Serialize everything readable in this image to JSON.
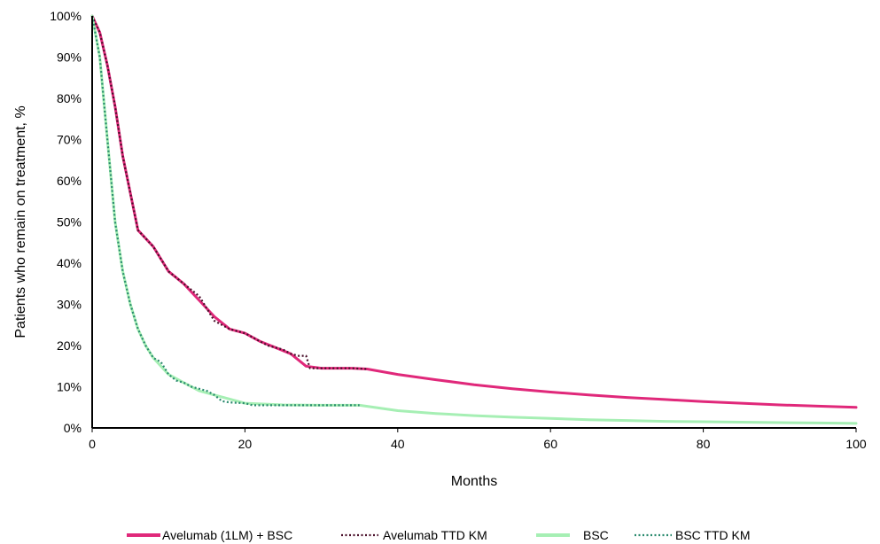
{
  "chart_data": {
    "type": "line",
    "title": "",
    "xlabel": "Months",
    "ylabel": "Patients who remain on treatment, %",
    "xlim": [
      0,
      100
    ],
    "ylim": [
      0,
      100
    ],
    "x_ticks": [
      0,
      20,
      40,
      60,
      80,
      100
    ],
    "x_tick_labels": [
      "0",
      "20",
      "40",
      "60",
      "80",
      "100"
    ],
    "y_ticks": [
      0,
      10,
      20,
      30,
      40,
      50,
      60,
      70,
      80,
      90,
      100
    ],
    "y_tick_labels": [
      "0%",
      "10%",
      "20%",
      "30%",
      "40%",
      "50%",
      "60%",
      "70%",
      "80%",
      "90%",
      "100%"
    ],
    "grid": false,
    "legend_position": "bottom",
    "series": [
      {
        "name": "Avelumab (1LM) + BSC",
        "color": "#e0287a",
        "style": "solid",
        "x": [
          0,
          1,
          2,
          3,
          4,
          5,
          6,
          8,
          10,
          12,
          14,
          16,
          18,
          20,
          22,
          24,
          26,
          28,
          30,
          32,
          34,
          36,
          40,
          45,
          50,
          55,
          60,
          65,
          70,
          75,
          80,
          85,
          90,
          95,
          100
        ],
        "y": [
          100,
          96,
          88,
          78,
          66,
          57,
          48,
          44,
          38,
          35,
          31,
          27,
          24,
          23,
          21,
          19.5,
          18,
          15,
          14.5,
          14.5,
          14.5,
          14.3,
          13,
          11.7,
          10.5,
          9.5,
          8.7,
          8,
          7.4,
          6.9,
          6.4,
          6,
          5.6,
          5.3,
          5
        ]
      },
      {
        "name": "Avelumab TTD KM",
        "color": "#4a0f2a",
        "style": "dotted",
        "x": [
          0,
          1,
          2,
          3,
          4,
          5,
          6,
          8,
          10,
          12,
          14,
          15,
          16,
          17,
          18,
          20,
          21,
          22,
          23,
          24,
          25,
          26,
          27,
          28,
          28.5,
          30,
          32,
          34,
          36
        ],
        "y": [
          100,
          96,
          88,
          78,
          66,
          57,
          48,
          44,
          38,
          35,
          32,
          29,
          26,
          25,
          24,
          23,
          22,
          21,
          20,
          19.5,
          19,
          18,
          17.5,
          17.5,
          14.5,
          14.5,
          14.5,
          14.5,
          14.3
        ]
      },
      {
        "name": "BSC",
        "color": "#a6efb4",
        "style": "solid",
        "x": [
          0,
          1,
          2,
          3,
          4,
          5,
          6,
          7,
          8,
          9,
          10,
          12,
          14,
          16,
          18,
          20,
          25,
          30,
          35,
          40,
          45,
          50,
          55,
          60,
          65,
          70,
          75,
          80,
          85,
          90,
          95,
          100
        ],
        "y": [
          100,
          90,
          70,
          50,
          38,
          30,
          24,
          20,
          17,
          15,
          13,
          11,
          9,
          8,
          7,
          6,
          5.6,
          5.5,
          5.5,
          4.2,
          3.5,
          3,
          2.6,
          2.3,
          2,
          1.8,
          1.6,
          1.5,
          1.4,
          1.3,
          1.2,
          1.1
        ]
      },
      {
        "name": "BSC TTD KM",
        "color": "#2a8a6e",
        "style": "dotted",
        "x": [
          0,
          1,
          2,
          3,
          4,
          5,
          6,
          7,
          8,
          9,
          10,
          11,
          12,
          13,
          14,
          15,
          16,
          17,
          18,
          20,
          21,
          25,
          30,
          35
        ],
        "y": [
          100,
          90,
          70,
          50,
          38,
          30,
          24,
          20,
          17,
          16,
          13,
          11.5,
          11,
          10,
          9.5,
          9,
          8,
          6.5,
          6.2,
          6,
          5.5,
          5.5,
          5.5,
          5.5
        ]
      }
    ]
  }
}
